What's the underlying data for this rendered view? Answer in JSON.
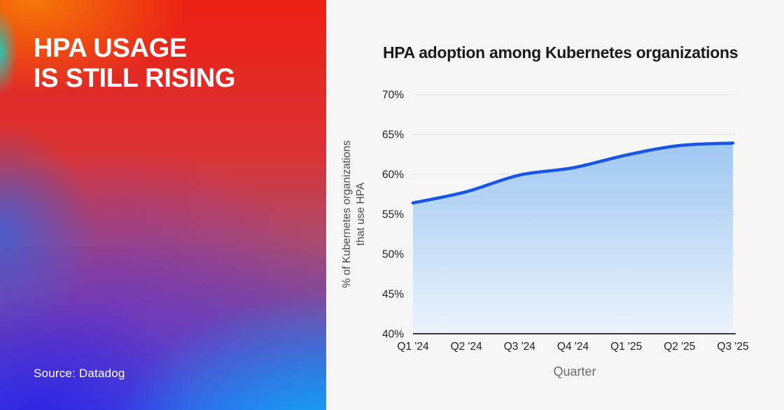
{
  "left_panel": {
    "headline_line1": "HPA USAGE",
    "headline_line2": "IS STILL RISING",
    "source": "Source: Datadog",
    "headline_color": "#ffffff",
    "gradient_colors": [
      "#f67e07",
      "#ec2013",
      "#20c9bc",
      "#682cce",
      "#301ce2",
      "#10b2f5"
    ]
  },
  "chart": {
    "title": "HPA adoption among Kubernetes organizations",
    "xlabel": "Quarter",
    "ylabel_line1": "% of Kubernetes organizations",
    "ylabel_line2": "that use HPA"
  },
  "chart_data": {
    "type": "area",
    "categories": [
      "Q1 '24",
      "Q2 '24",
      "Q3 '24",
      "Q4 '24",
      "Q1 '25",
      "Q2 '25",
      "Q3 '25"
    ],
    "values": [
      56.4,
      57.8,
      59.9,
      60.8,
      62.4,
      63.6,
      63.9
    ],
    "title": "HPA adoption among Kubernetes organizations",
    "xlabel": "Quarter",
    "ylabel": "% of Kubernetes organizations that use HPA",
    "ylim": [
      40,
      70
    ],
    "ytick_step": 5,
    "ytick_suffix": "%",
    "grid": true,
    "legend": false,
    "line_color": "#1955e6",
    "area_fill_top": "#9fc8f2",
    "area_fill_bottom": "#ebf3fb",
    "gridline_color": "#e4e4e7",
    "axis_line_color": "#3a3a3e",
    "tick_label_color": "#1f1f1f",
    "axis_title_color": "#6b6b6b"
  }
}
